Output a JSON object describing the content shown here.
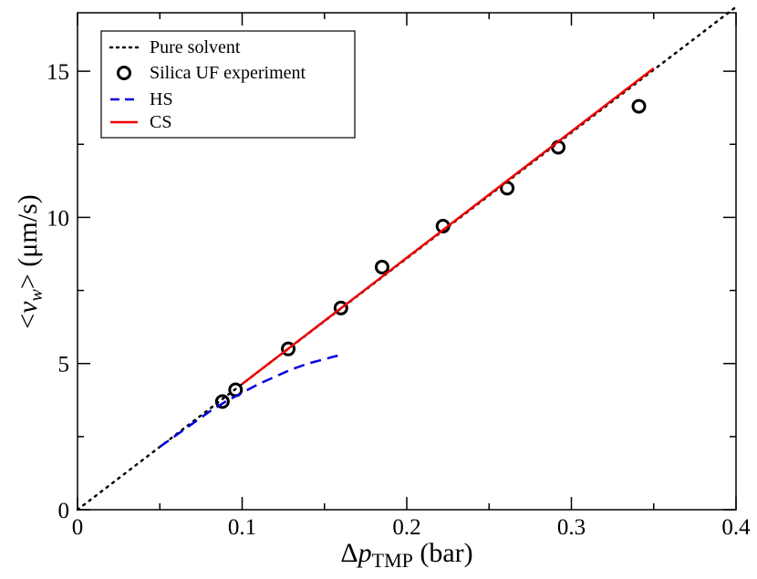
{
  "chart_data": {
    "type": "line",
    "title": "",
    "xlabel": {
      "prefix": "Δ",
      "var": "p",
      "sub": "TMP",
      "unit": " (bar)"
    },
    "ylabel": {
      "open": "<",
      "var": "v",
      "sub": "w",
      "close": ">",
      "unit": " (μm/s)"
    },
    "xlim": [
      0,
      0.4
    ],
    "ylim": [
      0,
      17
    ],
    "x_major_ticks": [
      0,
      0.1,
      0.2,
      0.3,
      0.4
    ],
    "x_tick_labels": [
      "0",
      "0.1",
      "0.2",
      "0.3",
      "0.4"
    ],
    "y_major_ticks": [
      0,
      5,
      10,
      15
    ],
    "y_tick_labels": [
      "0",
      "5",
      "10",
      "15"
    ],
    "legend_position": "top-left",
    "grid": false,
    "series": [
      {
        "name": "Pure solvent",
        "style": "dotted",
        "color": "#000000",
        "x": [
          0,
          0.4
        ],
        "y": [
          0,
          17.2
        ]
      },
      {
        "name": "Silica UF experiment",
        "style": "markers",
        "marker": "open-circle",
        "color": "#000000",
        "x": [
          0.088,
          0.096,
          0.128,
          0.16,
          0.185,
          0.222,
          0.261,
          0.292,
          0.341
        ],
        "y": [
          3.7,
          4.1,
          5.5,
          6.9,
          8.3,
          9.7,
          11.0,
          12.4,
          13.8
        ]
      },
      {
        "name": "HS",
        "style": "dashed",
        "color": "#0000dd",
        "x": [
          0.05,
          0.06,
          0.07,
          0.08,
          0.09,
          0.1,
          0.11,
          0.12,
          0.13,
          0.14,
          0.15,
          0.16
        ],
        "y": [
          2.15,
          2.55,
          2.95,
          3.35,
          3.7,
          4.0,
          4.3,
          4.55,
          4.8,
          5.0,
          5.15,
          5.3
        ]
      },
      {
        "name": "CS",
        "style": "solid",
        "color": "#ee0000",
        "x": [
          0.1,
          0.35
        ],
        "y": [
          4.3,
          15.1
        ]
      }
    ]
  }
}
